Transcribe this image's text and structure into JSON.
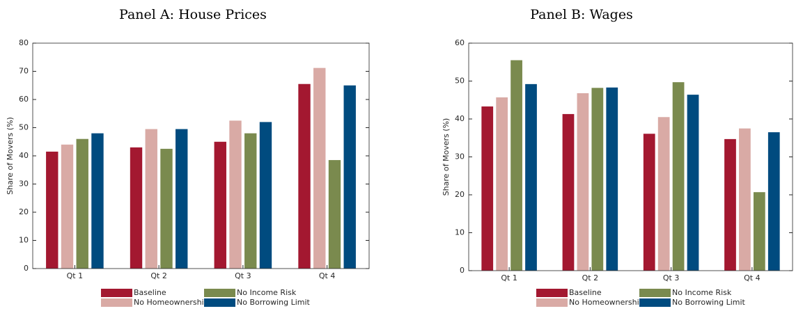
{
  "chart_data": [
    {
      "type": "bar",
      "title": "Panel A: House Prices",
      "ylabel": "Share of Movers (%)",
      "categories": [
        "Qt 1",
        "Qt 2",
        "Qt 3",
        "Qt 4"
      ],
      "series": [
        {
          "name": "Baseline",
          "color": "#a31830",
          "values": [
            41.5,
            43,
            45,
            65.5
          ]
        },
        {
          "name": "No Homeownership",
          "color": "#d9aaa5",
          "values": [
            44,
            49.5,
            52.5,
            71.2
          ]
        },
        {
          "name": "No Income Risk",
          "color": "#7a8a4e",
          "values": [
            46,
            42.5,
            48,
            38.5
          ]
        },
        {
          "name": "No Borrowing Limit",
          "color": "#004b7f",
          "values": [
            48,
            49.5,
            52,
            65
          ]
        }
      ],
      "ylim": [
        0,
        80
      ],
      "yticks": [
        0,
        10,
        20,
        30,
        40,
        50,
        60,
        70,
        80
      ]
    },
    {
      "type": "bar",
      "title": "Panel B: Wages",
      "ylabel": "Share of Movers (%)",
      "categories": [
        "Qt 1",
        "Qt 2",
        "Qt 3",
        "Qt 4"
      ],
      "series": [
        {
          "name": "Baseline",
          "color": "#a31830",
          "values": [
            43.3,
            41.3,
            36.1,
            34.7
          ]
        },
        {
          "name": "No Homeownership",
          "color": "#d9aaa5",
          "values": [
            45.7,
            46.8,
            40.5,
            37.5
          ]
        },
        {
          "name": "No Income Risk",
          "color": "#7a8a4e",
          "values": [
            55.5,
            48.2,
            49.7,
            20.7
          ]
        },
        {
          "name": "No Borrowing Limit",
          "color": "#004b7f",
          "values": [
            49.2,
            48.3,
            46.4,
            36.5
          ]
        }
      ],
      "ylim": [
        0,
        60
      ],
      "yticks": [
        0,
        10,
        20,
        30,
        40,
        50,
        60
      ]
    }
  ]
}
